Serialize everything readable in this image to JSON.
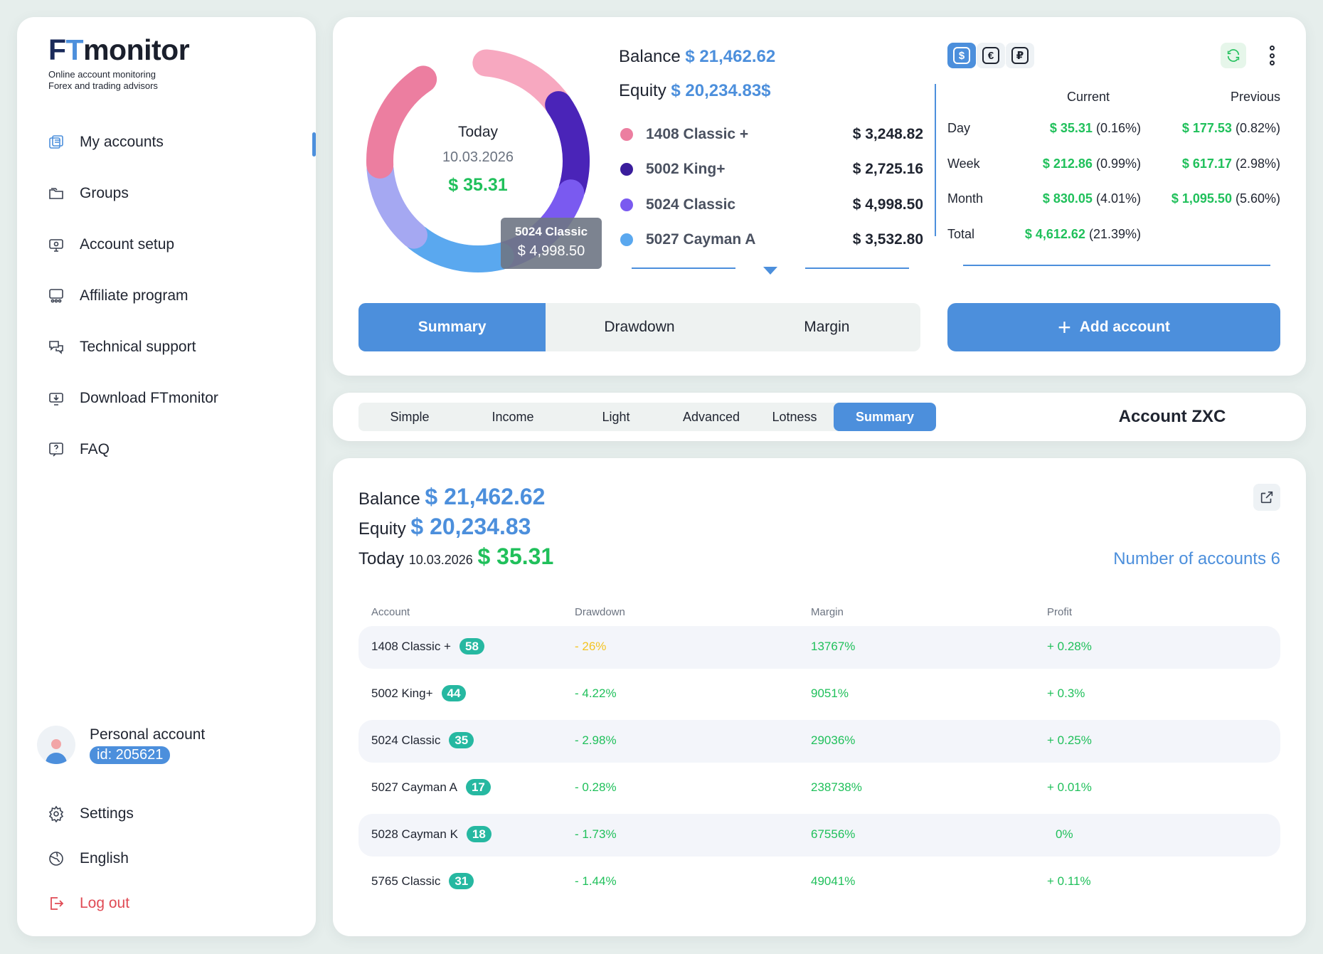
{
  "brand": {
    "logo_text": "FTmonitor",
    "tagline_1": "Online account monitoring",
    "tagline_2": "Forex and trading advisors"
  },
  "sidebar": {
    "items": [
      {
        "label": "My accounts",
        "icon": "accounts-icon",
        "active": true
      },
      {
        "label": "Groups",
        "icon": "folder-icon"
      },
      {
        "label": "Account setup",
        "icon": "monitor-settings-icon"
      },
      {
        "label": "Affiliate program",
        "icon": "affiliate-icon"
      },
      {
        "label": "Technical support",
        "icon": "support-chat-icon"
      },
      {
        "label": "Download FTmonitor",
        "icon": "download-icon"
      },
      {
        "label": "FAQ",
        "icon": "faq-icon"
      }
    ],
    "profile": {
      "name": "Personal account",
      "id": "id: 205621"
    },
    "bottom": [
      {
        "label": "Settings",
        "icon": "gear-icon"
      },
      {
        "label": "English",
        "icon": "globe-icon"
      },
      {
        "label": "Log out",
        "icon": "logout-icon"
      }
    ]
  },
  "overview": {
    "balance_label": "Balance",
    "balance_value": "$ 21,462.62",
    "equity_label": "Equity",
    "equity_value": "$ 20,234.83$",
    "donut": {
      "today_label": "Today",
      "date": "10.03.2026",
      "value": "$ 35.31",
      "tooltip_name": "5024 Classic",
      "tooltip_value": "$ 4,998.50",
      "segments": [
        {
          "color": "#f7a8c0",
          "share": 0.14
        },
        {
          "color": "#4a24b8",
          "share": 0.15
        },
        {
          "color": "#7a5af0",
          "share": 0.16
        },
        {
          "color": "#5aa8ef",
          "share": 0.15
        },
        {
          "color": "#a5a8f2",
          "share": 0.13
        },
        {
          "color": "#ec7ea0",
          "share": 0.17
        }
      ]
    },
    "accounts": [
      {
        "name": "1408 Classic +",
        "value": "$ 3,248.82",
        "color": "#ec7ea0"
      },
      {
        "name": "5002 King+",
        "value": "$ 2,725.16",
        "color": "#3a1d9c"
      },
      {
        "name": "5024 Classic",
        "value": "$ 4,998.50",
        "color": "#7a5af0"
      },
      {
        "name": "5027 Cayman A",
        "value": "$ 3,532.80",
        "color": "#5aa8ef"
      }
    ],
    "currencies": [
      {
        "symbol": "$",
        "active": true
      },
      {
        "symbol": "€",
        "active": false
      },
      {
        "symbol": "₽",
        "active": false
      }
    ],
    "stats": {
      "current_label": "Current",
      "previous_label": "Previous",
      "rows": [
        {
          "period": "Day",
          "cur": "$ 35.31",
          "cur_pct": "(0.16%)",
          "prev": "$ 177.53",
          "prev_pct": "(0.82%)"
        },
        {
          "period": "Week",
          "cur": "$ 212.86",
          "cur_pct": "(0.99%)",
          "prev": "$ 617.17",
          "prev_pct": "(2.98%)"
        },
        {
          "period": "Month",
          "cur": "$ 830.05",
          "cur_pct": "(4.01%)",
          "prev": "$ 1,095.50",
          "prev_pct": "(5.60%)"
        },
        {
          "period": "Total",
          "cur": "$ 4,612.62",
          "cur_pct": "(21.39%)",
          "prev": "",
          "prev_pct": ""
        }
      ]
    },
    "tabs": [
      "Summary",
      "Drawdown",
      "Margin"
    ],
    "active_tab": 0,
    "add_account_label": "Add account"
  },
  "view_tabs": {
    "items": [
      "Simple",
      "Income",
      "Light",
      "Advanced",
      "Lotness",
      "Summary"
    ],
    "active": 5,
    "account_title": "Account ZXC"
  },
  "summary": {
    "balance_label": "Balance",
    "balance_value": "$ 21,462.62",
    "equity_label": "Equity",
    "equity_value": "$ 20,234.83",
    "today_label": "Today",
    "today_date": "10.03.2026",
    "today_value": "$ 35.31",
    "num_accounts": "Number of accounts 6",
    "columns": [
      "Account",
      "Drawdown",
      "Margin",
      "Profit"
    ],
    "rows": [
      {
        "account": "1408 Classic +",
        "count": "58",
        "drawdown": "- 26%",
        "warn": true,
        "margin": "13767%",
        "profit": "+ 0.28%"
      },
      {
        "account": "5002 King+",
        "count": "44",
        "drawdown": "- 4.22%",
        "margin": "9051%",
        "profit": "+ 0.3%"
      },
      {
        "account": "5024 Classic",
        "count": "35",
        "drawdown": "- 2.98%",
        "margin": "29036%",
        "profit": "+ 0.25%"
      },
      {
        "account": "5027 Cayman A",
        "count": "17",
        "drawdown": "- 0.28%",
        "margin": "238738%",
        "profit": "+ 0.01%"
      },
      {
        "account": "5028 Cayman K",
        "count": "18",
        "drawdown": "- 1.73%",
        "margin": "67556%",
        "profit": "0%"
      },
      {
        "account": "5765 Classic",
        "count": "31",
        "drawdown": "- 1.44%",
        "margin": "49041%",
        "profit": "+ 0.11%"
      }
    ]
  },
  "colors": {
    "accent": "#4c8fdc",
    "positive": "#20c05b",
    "warning": "#f3c321",
    "badge": "#26b8a1",
    "logout": "#e04b55"
  }
}
